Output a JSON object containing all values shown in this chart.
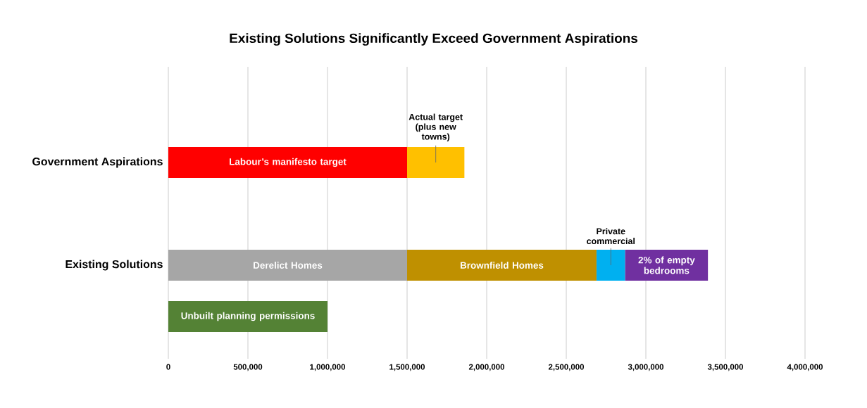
{
  "chart_data": {
    "type": "bar",
    "orientation": "horizontal",
    "stacked": true,
    "title": "Existing Solutions Significantly Exceed Government Aspirations",
    "categories": [
      "Government Aspirations",
      null,
      "Existing Solutions",
      null
    ],
    "series": [
      {
        "name": "Labour’s manifesto target",
        "color": "#ff0000",
        "values": [
          1500000,
          null,
          null,
          null
        ]
      },
      {
        "name": "Actual target (plus new towns)",
        "color": "#ffc000",
        "values": [
          360000,
          null,
          null,
          null
        ]
      },
      {
        "name": "Derelict Homes",
        "color": "#a6a6a6",
        "values": [
          null,
          null,
          1500000,
          null
        ]
      },
      {
        "name": "Brownfield Homes",
        "color": "#bf9000",
        "values": [
          null,
          null,
          1190000,
          null
        ]
      },
      {
        "name": "Private commercial",
        "color": "#00b0f0",
        "values": [
          null,
          null,
          180000,
          null
        ]
      },
      {
        "name": "2% of empty bedrooms",
        "color": "#7030a0",
        "values": [
          null,
          null,
          520000,
          null
        ]
      },
      {
        "name": "Unbuilt planning permissions",
        "color": "#548235",
        "values": [
          null,
          null,
          null,
          1000000
        ]
      }
    ],
    "xlim": [
      0,
      4000000
    ],
    "xticks": [
      0,
      {
        "value": 500000,
        "label": "500,000"
      },
      {
        "value": 1000000,
        "label": "1,000,000"
      },
      {
        "value": 1500000,
        "label": "1,500,000"
      },
      {
        "value": 2000000,
        "label": "2,000,000"
      },
      {
        "value": 2500000,
        "label": "2,500,000"
      },
      {
        "value": 3000000,
        "label": "3,000,000"
      },
      {
        "value": 3500000,
        "label": "3,500,000"
      },
      {
        "value": 4000000,
        "label": "4,000,000"
      }
    ],
    "grid": "x"
  }
}
